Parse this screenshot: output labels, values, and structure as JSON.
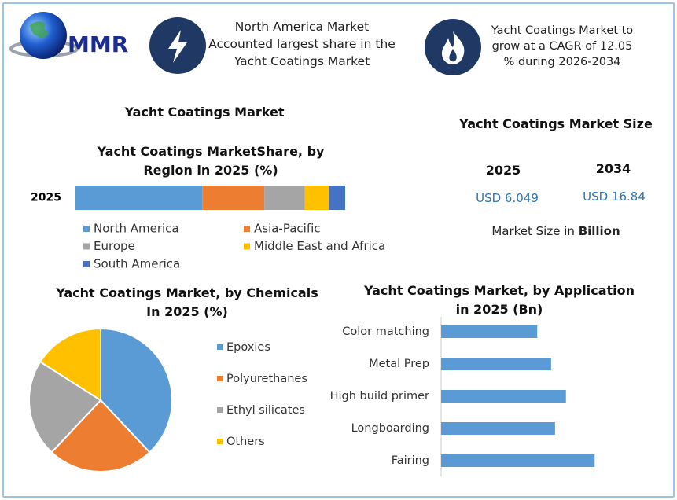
{
  "header": {
    "logo": "MMR",
    "note1": "North America Market Accounted largest share in the Yacht Coatings Market",
    "note2": "Yacht Coatings Market to grow at a CAGR of 12.05 % during 2026-2034"
  },
  "section_title": "Yacht Coatings Market",
  "market_size": {
    "title": "Yacht Coatings Market Size",
    "years": [
      "2025",
      "2034"
    ],
    "amounts": [
      "USD 6.049",
      "USD 16.84"
    ],
    "note": "Market Size in",
    "note_unit": "Billion"
  },
  "chart_data": [
    {
      "type": "stacked-bar",
      "title": "Yacht Coatings MarketShare, by Region in 2025 (%)",
      "categories": [
        "2025"
      ],
      "xlim": [
        0,
        100
      ],
      "series": [
        {
          "name": "North America",
          "color": "#5b9bd5",
          "values": [
            47
          ]
        },
        {
          "name": "Asia-Pacific",
          "color": "#ed7d31",
          "values": [
            23
          ]
        },
        {
          "name": "Europe",
          "color": "#a5a5a5",
          "values": [
            15
          ]
        },
        {
          "name": "Middle East and Africa",
          "color": "#ffc000",
          "values": [
            9
          ]
        },
        {
          "name": "South America",
          "color": "#4472c4",
          "values": [
            6
          ]
        }
      ]
    },
    {
      "type": "pie",
      "title": "Yacht Coatings Market, by Chemicals In 2025 (%)",
      "categories": [
        "Epoxies",
        "Polyurethanes",
        "Ethyl silicates",
        "Others"
      ],
      "values": [
        38,
        24,
        22,
        16
      ],
      "colors": [
        "#5b9bd5",
        "#ed7d31",
        "#a5a5a5",
        "#ffc000"
      ]
    },
    {
      "type": "hbar",
      "title": "Yacht Coatings Market, by Application in 2025 (Bn)",
      "categories": [
        "Color matching",
        "Metal Prep",
        "High build primer",
        "Longboarding",
        "Fairing"
      ],
      "values": [
        0.97,
        1.11,
        1.26,
        1.15,
        1.55
      ],
      "color": "#5b9bd5",
      "xlim": [
        0,
        2
      ]
    }
  ]
}
